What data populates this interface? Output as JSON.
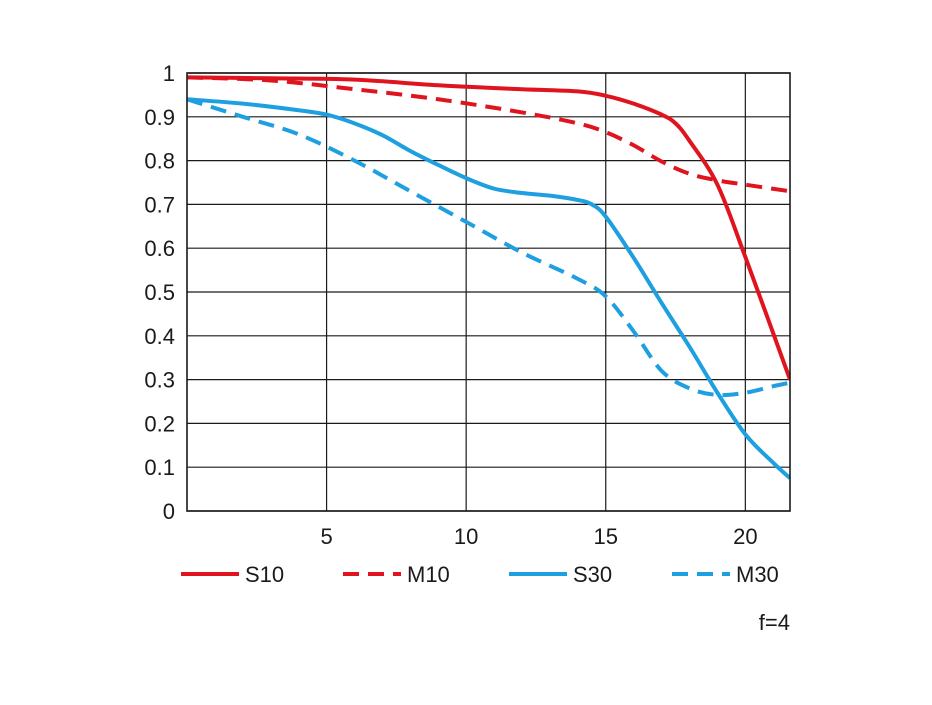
{
  "chart_data": {
    "type": "line",
    "title": "",
    "xlabel": "",
    "ylabel": "",
    "xlim": [
      0,
      21.6
    ],
    "ylim": [
      0,
      1
    ],
    "x_ticks": [
      5,
      10,
      15,
      20
    ],
    "y_ticks": [
      0,
      0.1,
      0.2,
      0.3,
      0.4,
      0.5,
      0.6,
      0.7,
      0.8,
      0.9,
      1
    ],
    "y_tick_labels": [
      "0",
      "0.1",
      "0.2",
      "0.3",
      "0.4",
      "0.5",
      "0.6",
      "0.7",
      "0.8",
      "0.9",
      "1"
    ],
    "x_tick_labels": [
      "5",
      "10",
      "15",
      "20"
    ],
    "grid": true,
    "legend_placement": "bottom",
    "annotation": "f=4",
    "series": [
      {
        "name": "S10",
        "color": "#e0141e",
        "dash": "solid",
        "x": [
          0,
          3,
          6,
          9,
          12,
          14,
          15,
          16,
          17,
          17.5,
          18,
          19,
          20,
          21.6
        ],
        "y": [
          0.99,
          0.988,
          0.985,
          0.972,
          0.963,
          0.958,
          0.948,
          0.93,
          0.905,
          0.885,
          0.845,
          0.745,
          0.58,
          0.3
        ]
      },
      {
        "name": "M10",
        "color": "#e0141e",
        "dash": "dashed",
        "x": [
          0,
          3,
          6,
          9,
          12,
          14,
          15,
          16,
          17,
          18,
          19,
          20,
          21.6
        ],
        "y": [
          0.99,
          0.983,
          0.963,
          0.94,
          0.91,
          0.885,
          0.865,
          0.835,
          0.798,
          0.77,
          0.755,
          0.745,
          0.73
        ]
      },
      {
        "name": "S30",
        "color": "#1e9fe0",
        "dash": "solid",
        "x": [
          0,
          2,
          4,
          5,
          6,
          7,
          8,
          9,
          10,
          11,
          12,
          13,
          14,
          14.5,
          15,
          16,
          17,
          18,
          19,
          20,
          21,
          21.6
        ],
        "y": [
          0.94,
          0.93,
          0.915,
          0.905,
          0.885,
          0.858,
          0.822,
          0.79,
          0.76,
          0.736,
          0.726,
          0.72,
          0.71,
          0.7,
          0.672,
          0.578,
          0.475,
          0.375,
          0.27,
          0.175,
          0.11,
          0.075
        ]
      },
      {
        "name": "M30",
        "color": "#1e9fe0",
        "dash": "dashed",
        "x": [
          0,
          2,
          4,
          6,
          8,
          10,
          12,
          14,
          15,
          16,
          17,
          18,
          19,
          20,
          21,
          21.6
        ],
        "y": [
          0.94,
          0.9,
          0.86,
          0.8,
          0.73,
          0.66,
          0.59,
          0.53,
          0.49,
          0.41,
          0.32,
          0.28,
          0.265,
          0.27,
          0.285,
          0.293
        ]
      }
    ]
  }
}
